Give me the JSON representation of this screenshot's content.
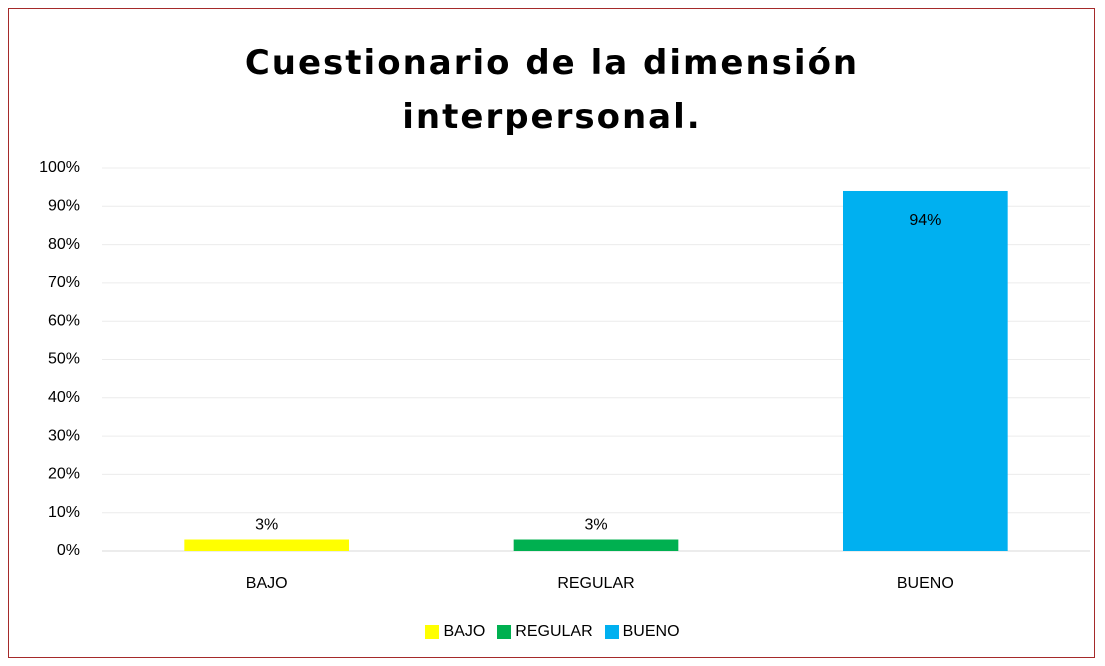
{
  "chart_data": {
    "type": "bar",
    "title": "Cuestionario de la dimensión interpersonal.",
    "categories": [
      "BAJO",
      "REGULAR",
      "BUENO"
    ],
    "values": [
      3,
      3,
      94
    ],
    "value_labels": [
      "3%",
      "3%",
      "94%"
    ],
    "colors": [
      "#ffff00",
      "#00b050",
      "#00b0f0"
    ],
    "ylim": [
      0,
      100
    ],
    "yticks": [
      {
        "value": 0,
        "label": "0%"
      },
      {
        "value": 10,
        "label": "10%"
      },
      {
        "value": 20,
        "label": "20%"
      },
      {
        "value": 30,
        "label": "30%"
      },
      {
        "value": 40,
        "label": "40%"
      },
      {
        "value": 50,
        "label": "50%"
      },
      {
        "value": 60,
        "label": "60%"
      },
      {
        "value": 70,
        "label": "70%"
      },
      {
        "value": 80,
        "label": "80%"
      },
      {
        "value": 90,
        "label": "90%"
      },
      {
        "value": 100,
        "label": "100%"
      }
    ],
    "grid": true,
    "legend": "bottom"
  }
}
